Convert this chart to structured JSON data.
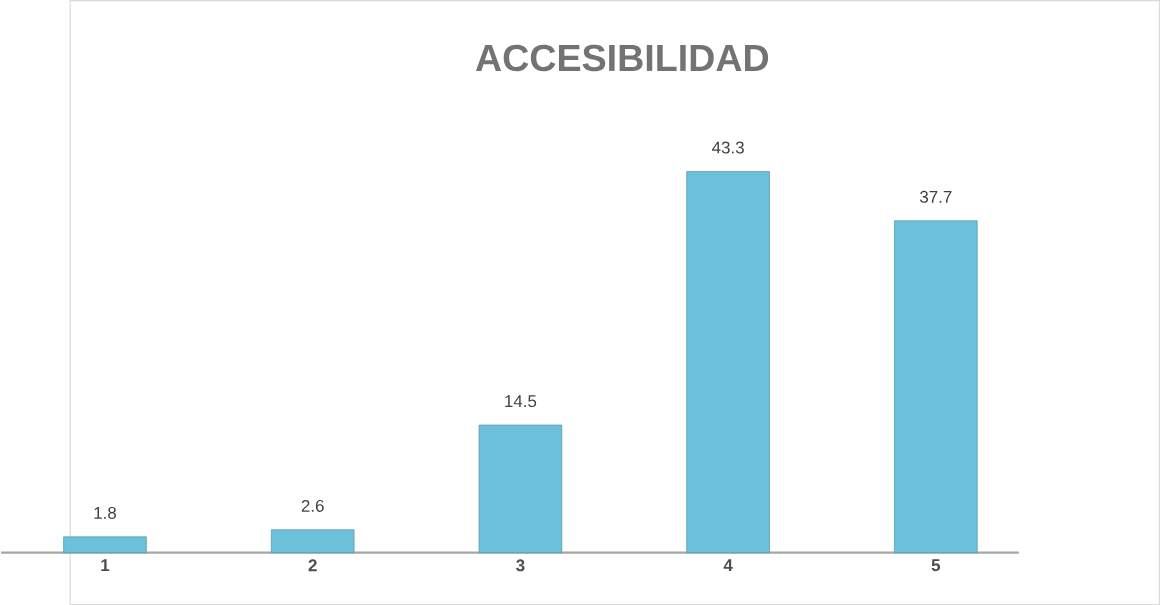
{
  "chart_data": {
    "type": "bar",
    "title": "ACCESIBILIDAD",
    "categories": [
      "1",
      "2",
      "3",
      "4",
      "5"
    ],
    "values": [
      1.8,
      2.6,
      14.5,
      43.3,
      37.7
    ],
    "color": "#6cc0da",
    "data_labels": true
  }
}
